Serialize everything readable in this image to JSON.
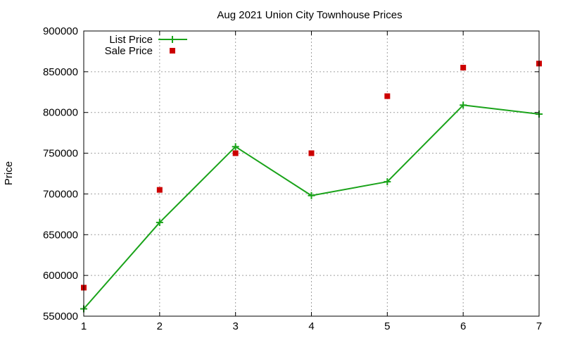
{
  "chart_data": {
    "type": "line",
    "title": "Aug 2021 Union City Townhouse Prices",
    "xlabel": "",
    "ylabel": "Price",
    "x": [
      1,
      2,
      3,
      4,
      5,
      6,
      7
    ],
    "xlim": [
      1,
      7
    ],
    "ylim": [
      550000,
      900000
    ],
    "x_ticks": [
      "1",
      "2",
      "3",
      "4",
      "5",
      "6",
      "7"
    ],
    "y_ticks": [
      "550000",
      "600000",
      "650000",
      "700000",
      "750000",
      "800000",
      "850000",
      "900000"
    ],
    "grid": true,
    "legend_position": "top-left",
    "series": [
      {
        "name": "List Price",
        "style": "line-with-plus-markers",
        "color": "#1aa31a",
        "values": [
          559000,
          665000,
          758000,
          698000,
          715000,
          809000,
          798000
        ]
      },
      {
        "name": "Sale Price",
        "style": "square-points",
        "color": "#cc0000",
        "values": [
          585000,
          705000,
          750000,
          750000,
          820000,
          855000,
          860000
        ]
      }
    ]
  }
}
